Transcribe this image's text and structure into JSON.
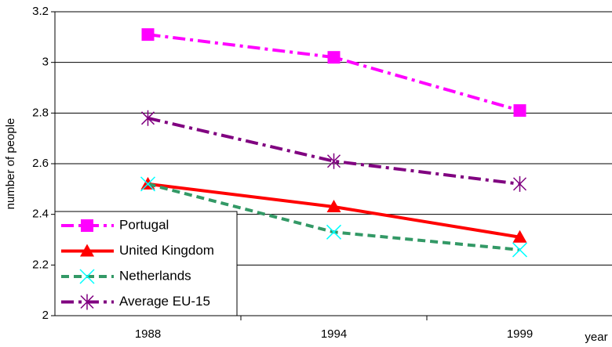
{
  "chart_data": {
    "type": "line",
    "categories": [
      "1988",
      "1994",
      "1999"
    ],
    "y_label": "number of people",
    "x_label": "year",
    "ylim": [
      2,
      3.2
    ],
    "yticks": [
      2,
      2.2,
      2.4,
      2.6,
      2.8,
      3,
      3.2
    ],
    "grid": true,
    "legend": "bottom-left",
    "series": [
      {
        "name": "Portugal",
        "color": "#ff00ff",
        "marker": "square",
        "marker_color": "#ff00ff",
        "line_style": "dash-dot",
        "values": [
          3.11,
          3.02,
          2.81
        ]
      },
      {
        "name": "United Kingdom",
        "color": "#ff0000",
        "marker": "triangle",
        "marker_color": "#ff0000",
        "line_style": "solid",
        "values": [
          2.52,
          2.43,
          2.31
        ]
      },
      {
        "name": "Netherlands",
        "color": "#339966",
        "marker": "x",
        "marker_color": "#00ffff",
        "line_style": "dashed",
        "values": [
          2.52,
          2.33,
          2.26
        ]
      },
      {
        "name": "Average EU-15",
        "color": "#800080",
        "marker": "asterisk",
        "marker_color": "#800080",
        "line_style": "dash-dot",
        "values": [
          2.78,
          2.61,
          2.52
        ]
      }
    ]
  }
}
